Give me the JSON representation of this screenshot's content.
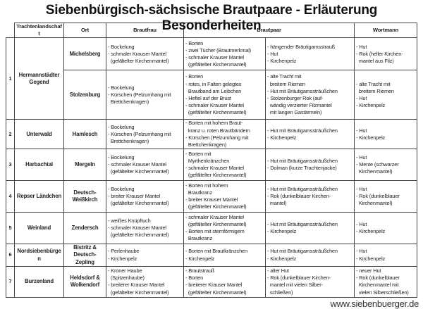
{
  "title": "Siebenbürgisch-sächsische Brautpaare - Erläuterung Besonderheiten",
  "headers": {
    "region": "Trachtenlandschaft",
    "place": "Ort",
    "bride": "Brautfrau",
    "couple": "Brautpaar",
    "speaker": "Wortmann"
  },
  "rows": [
    {
      "num": "1",
      "region": "Hermannstädter Gegend",
      "place": "Michelsberg",
      "bride": [
        "- Bockelung",
        "- schmaler Krauser Mantel",
        "  (gefältelter Kirchenmantel)"
      ],
      "couple_a": [
        "- Borten",
        "- zwei Tücher (Brautmerkmal)",
        "- schmaler Krauser Mantel",
        "  (gefältelter Kirchenmantel)"
      ],
      "couple_b": [
        "- hängender Bräutigamsstrauß",
        "- Hut",
        "- Kirchenpelz"
      ],
      "speaker": [
        "- Hut",
        "- Rok (heller Kirchen-",
        "  mantel aus Filz)"
      ]
    },
    {
      "num": "",
      "region": "",
      "place": "Stolzenburg",
      "bride": [
        "- Bockelung",
        "- Kürschen (Pelzumhang mit",
        "  Brettchenkragen)"
      ],
      "couple_a": [
        "- Borten",
        "- rotes, in Falten gelegtes",
        "  Brautband am Leibchen",
        "- Heftel auf der Brust",
        "- schmaler Krauser Mantel",
        "  (gefältelter Kirchenmantel)"
      ],
      "couple_b": [
        "- alte Tracht mit",
        "  breitem Riemen",
        "- Hut mit Bräutigamssträußchen",
        "- Stolzenburger Rok (auf-",
        "  wändig verzierter Filzmantel",
        "  mit langen Gastärmeln)"
      ],
      "speaker": [
        "- alte Tracht mit",
        "  breitem Riemen",
        "- Hut",
        "- Kirchenpelz"
      ]
    },
    {
      "num": "2",
      "region": "Unterwald",
      "place": "Hamlesch",
      "bride": [
        "- Bockelung",
        "- Kürschen (Pelzumhang mit",
        "  Brettchenkragen)"
      ],
      "couple_a": [
        "- Borten mit hohem Braut-",
        "  kranz u. roten Brautbändern",
        "- Kürschen (Pelzumhang mit",
        "  Brettchenkragen)"
      ],
      "couple_b": [
        "- Hut mit Bräutigamssträußchen",
        "- Kirchenpelz"
      ],
      "speaker": [
        "- Hut",
        "- Kirchenpelz"
      ]
    },
    {
      "num": "3",
      "region": "Harbachtal",
      "place": "Mergeln",
      "bride": [
        "- Bockelung",
        "- schmaler Krauser Mantel",
        "  (gefältelter Kirchenmantel)"
      ],
      "couple_a": [
        "- Borten mit",
        "  Myrthenkränzchen",
        "- schmaler Krauser Mantel",
        "  (gefältelter Kirchenmantel)"
      ],
      "couple_b": [
        "- Hut mit Bräutigamssträußchen",
        "- Dolman (kurze Trachtenjacke)"
      ],
      "speaker": [
        "- Hut",
        "- Mente (schwarzer",
        "  Kirchenmantel)"
      ]
    },
    {
      "num": "4",
      "region": "Repser Ländchen",
      "place": "Deutsch-Weißkirch",
      "bride": [
        "- Bockelung",
        "- breiter Krauser Mantel",
        "  (gefältelter Kirchenmantel)"
      ],
      "couple_a": [
        "- Borten mit hohem",
        "  Brautkranz",
        "- breiter Krauser Mantel",
        "  (gefältelter Kirchenmantel)"
      ],
      "couple_b": [
        "- Hut mit Bräutigamssträußchen",
        "- Rok (dunkelblauer Kirchen-",
        "  mantel)"
      ],
      "speaker": [
        "- Hut",
        "- Rok (dunkelblauer",
        "  Kirchenmantel)"
      ]
    },
    {
      "num": "5",
      "region": "Weinland",
      "place": "Zendersch",
      "bride": [
        "- weißes Knüpftuch",
        "- schmaler Krauser Mantel",
        "  (gefältelter Kirchenmantel)"
      ],
      "couple_a": [
        "- schmaler Krauser Mantel",
        "  (gefältelter Kirchenmantel)",
        "- Borten mit sternförmigem",
        "  Brautkranz"
      ],
      "couple_b": [
        "- Hut mit Bräutigamssträußchen",
        "- Kirchenpelz"
      ],
      "speaker": [
        "- Hut",
        "- Kirchenpelz"
      ]
    },
    {
      "num": "6",
      "region": "Nordsiebenbürgen",
      "place": "Bistritz & Deutsch-Zepling",
      "bride": [
        "- Perlenhaube",
        "- Kirchenpelz"
      ],
      "couple_a": [
        "- Borten mit Brautkränzchen",
        "- Kirchenpelz"
      ],
      "couple_b": [
        "- Hut mit Bräutigamssträußchen",
        "- Kirchenpelz"
      ],
      "speaker": [
        "- Hut",
        "- Kirchenpelz"
      ]
    },
    {
      "num": "7",
      "region": "Burzenland",
      "place": "Heldsdorf & Wolkendorf",
      "bride": [
        "- Kroner Haube",
        "  (Spitzenhaube)",
        "- breiterer Krauser Mantel",
        "  (gefältelter Kirchenmantel)"
      ],
      "couple_a": [
        "- Brautstrauß",
        "- Borten",
        "- breiterer Krauser Mantel",
        "  (gefältelter Kirchenmantel)"
      ],
      "couple_b": [
        "- alter Hut",
        "- Rok (dunkelblauer Kirchen-",
        "  mantel mit vielen Silber-",
        "  schließen)"
      ],
      "speaker": [
        "- neuer Hut",
        "- Rok (dunkelblauer",
        "  Kirchenmantel mit",
        "  vielen Silberschließen)"
      ]
    }
  ],
  "watermark": "www.siebenbuerger.de"
}
